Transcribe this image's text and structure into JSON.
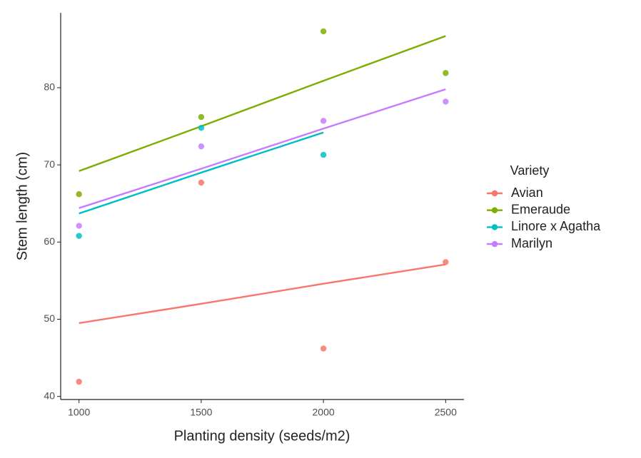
{
  "chart_data": {
    "type": "scatter",
    "x_label": "Planting density (seeds/m2)",
    "y_label": "Stem length (cm)",
    "legend_title": "Variety",
    "legend_position": "right",
    "x": [
      1000,
      1500,
      2000,
      2500
    ],
    "xlim": [
      925,
      2575
    ],
    "xticks": [
      1000,
      1500,
      2000,
      2500
    ],
    "ylim": [
      39.6,
      89.7
    ],
    "yticks": [
      40,
      50,
      60,
      70,
      80
    ],
    "grid": false,
    "series": [
      {
        "name": "Avian",
        "color": "#f8766d",
        "values": [
          41.9,
          67.7,
          46.2,
          57.4
        ],
        "fit": [
          49.5,
          52.0,
          54.6,
          57.1
        ]
      },
      {
        "name": "Emeraude",
        "color": "#7cae00",
        "values": [
          66.2,
          76.2,
          87.3,
          81.9
        ],
        "fit": [
          69.2,
          75.0,
          80.9,
          86.7
        ]
      },
      {
        "name": "Linore x Agatha",
        "color": "#00bfc4",
        "values": [
          60.8,
          74.8,
          71.3,
          null
        ],
        "fit": [
          63.7,
          69.0,
          74.2,
          null
        ]
      },
      {
        "name": "Marilyn",
        "color": "#c77cff",
        "values": [
          62.1,
          72.4,
          75.7,
          78.2
        ],
        "fit": [
          64.4,
          69.5,
          74.7,
          79.8
        ]
      }
    ]
  }
}
